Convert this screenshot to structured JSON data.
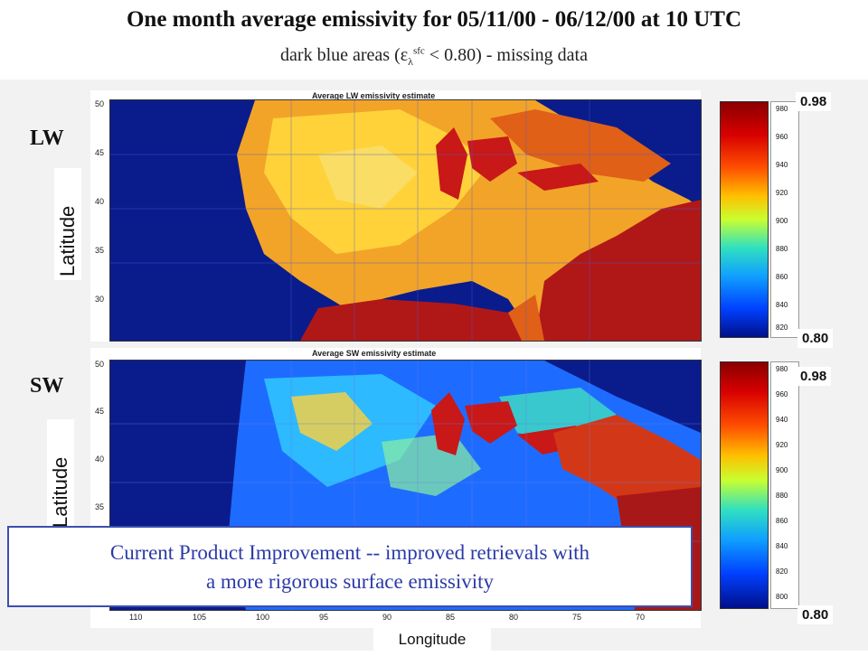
{
  "header": {
    "title": "One month average emissivity for 05/11/00 - 06/12/00 at 10 UTC",
    "subtitle_pre": "dark blue areas (ε",
    "subtitle_sub": "λ",
    "subtitle_sup": "sfc",
    "subtitle_post": " < 0.80) - missing data"
  },
  "panels": {
    "lw": {
      "label": "LW",
      "map_title": "Average LW emissivity estimate",
      "y_ticks": [
        "50",
        "45",
        "40",
        "35",
        "30"
      ],
      "axis_label": "Latitude",
      "colorbar_ticks": [
        "980",
        "960",
        "940",
        "920",
        "900",
        "880",
        "860",
        "840",
        "820"
      ],
      "max_value": "0.98",
      "min_value": "0.80"
    },
    "sw": {
      "label": "SW",
      "map_title": "Average SW emissivity estimate",
      "y_ticks": [
        "50",
        "45",
        "40",
        "35"
      ],
      "axis_label": "Latitude",
      "colorbar_ticks": [
        "980",
        "960",
        "940",
        "920",
        "900",
        "880",
        "860",
        "840",
        "820",
        "800"
      ],
      "max_value": "0.98",
      "min_value": "0.80"
    }
  },
  "x_ticks": [
    "110",
    "105",
    "100",
    "95",
    "90",
    "85",
    "80",
    "75",
    "70"
  ],
  "x_axis_label": "Longitude",
  "callout": {
    "line1": "Current Product Improvement -- improved retrievals with",
    "line2": "a more rigorous surface emissivity"
  },
  "colors": {
    "missing": "#0a1c8c",
    "low": "#1e6cff",
    "mid": "#ffd23a",
    "high": "#c81818",
    "callout_text": "#2b3aa8"
  }
}
